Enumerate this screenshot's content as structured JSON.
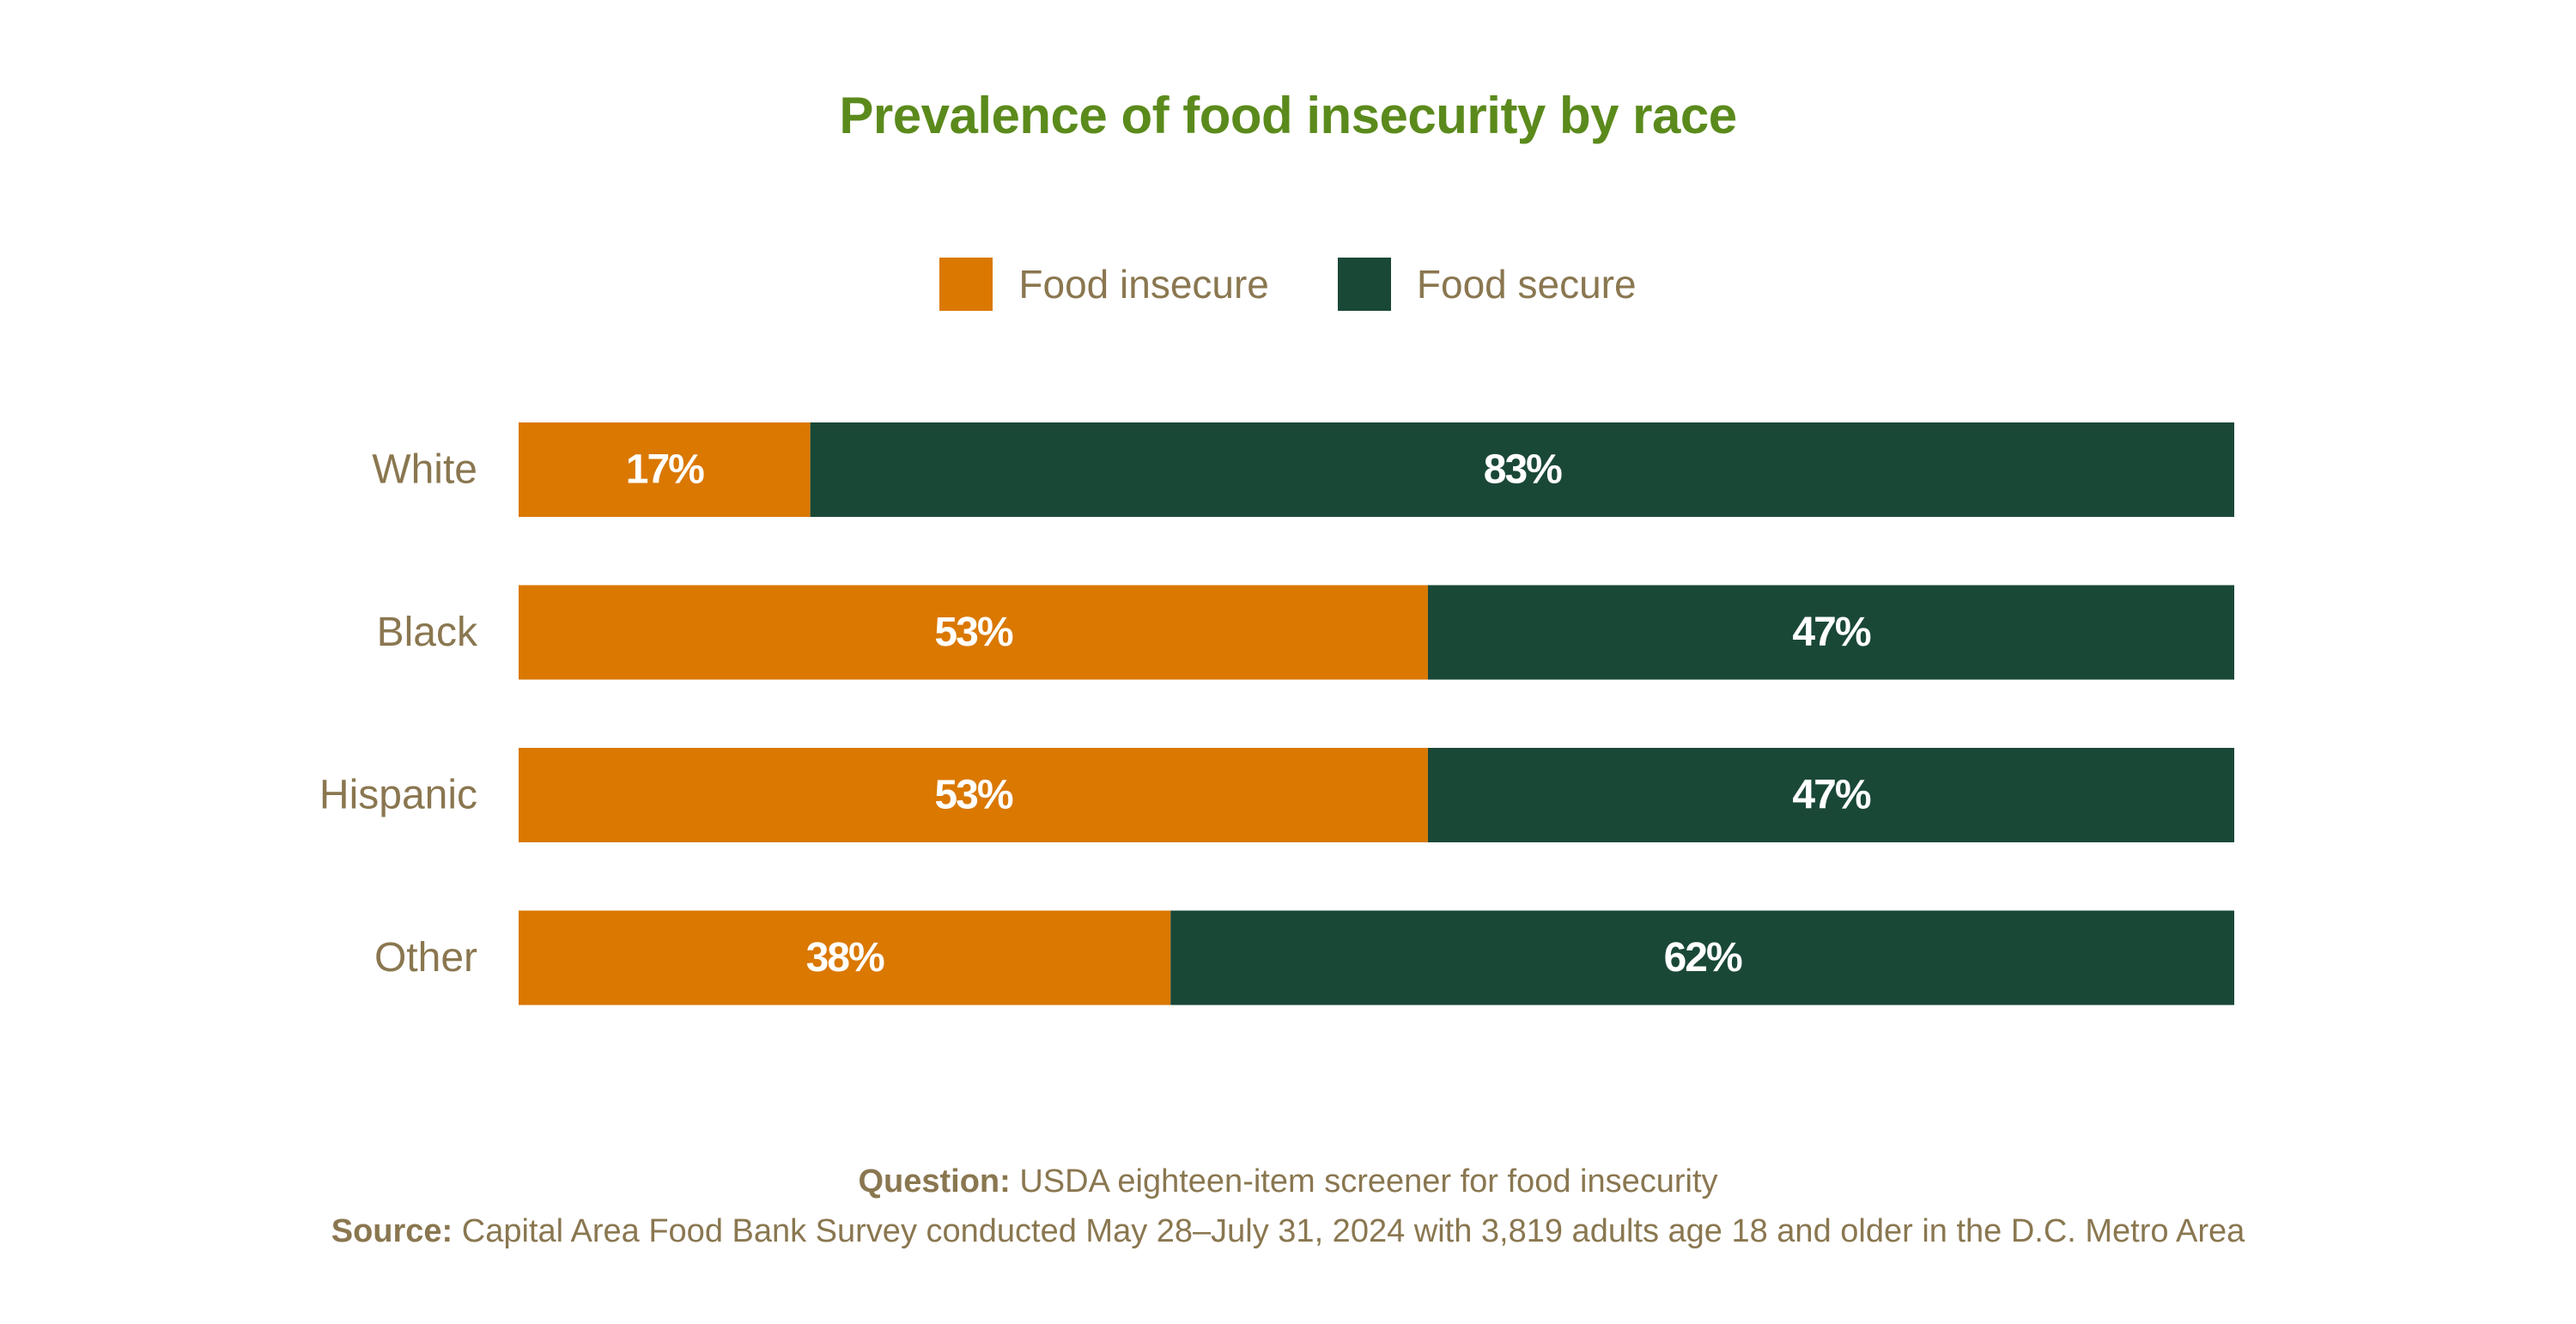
{
  "chart_data": {
    "type": "bar",
    "orientation": "horizontal",
    "stacked": true,
    "title": "Prevalence of food insecurity by race",
    "categories": [
      "White",
      "Black",
      "Hispanic",
      "Other"
    ],
    "series": [
      {
        "name": "Food insecure",
        "color": "#da7800",
        "values": [
          17,
          53,
          53,
          38
        ],
        "labels": [
          "17%",
          "53%",
          "53%",
          "38%"
        ]
      },
      {
        "name": "Food secure",
        "color": "#1a4837",
        "values": [
          83,
          47,
          47,
          62
        ],
        "labels": [
          "83%",
          "47%",
          "47%",
          "62%"
        ]
      }
    ],
    "xlim": [
      0,
      100
    ],
    "xlabel": "",
    "ylabel": "",
    "grid": false,
    "legend_position": "top-center"
  },
  "footer": {
    "question_label": "Question:",
    "question_text": " USDA eighteen-item screener for food insecurity",
    "source_label": "Source:",
    "source_text": " Capital Area Food Bank Survey conducted May 28–July 31, 2024 with 3,819 adults age 18 and older in the D.C. Metro Area"
  }
}
